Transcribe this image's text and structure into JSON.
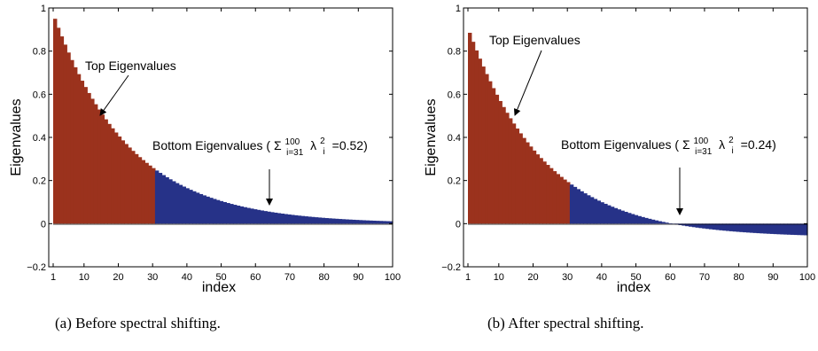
{
  "chart_data": [
    {
      "type": "bar",
      "xlabel": "index",
      "ylabel": "Eigenvalues",
      "xlim": [
        1,
        100
      ],
      "ylim": [
        -0.2,
        1
      ],
      "x_ticks": [
        "1",
        "10",
        "20",
        "30",
        "40",
        "50",
        "60",
        "70",
        "80",
        "90",
        "100"
      ],
      "y_ticks": [
        "−0.2",
        "0",
        "0.2",
        "0.4",
        "0.6",
        "0.8",
        "1"
      ],
      "grid": false,
      "series": [
        {
          "color": "#9b321d",
          "x_range": [
            1,
            30
          ]
        },
        {
          "color": "#263288",
          "x_range": [
            31,
            100
          ]
        }
      ],
      "decay": {
        "first_value": 0.95,
        "rate": 0.045,
        "offset": 0.0
      },
      "annotations": {
        "top": "Top Eigenvalues",
        "bottom_prefix": "Bottom Eigenvalues (",
        "sigma": "Σ",
        "sum_upper": "100",
        "sum_lower": "i=31",
        "lambda": "λ",
        "lambda_sup": "2",
        "lambda_sub": "i",
        "bottom_suffix": "=0.52)"
      },
      "caption": "(a)  Before spectral shifting."
    },
    {
      "type": "bar",
      "xlabel": "index",
      "ylabel": "Eigenvalues",
      "xlim": [
        1,
        100
      ],
      "ylim": [
        -0.2,
        1
      ],
      "x_ticks": [
        "1",
        "10",
        "20",
        "30",
        "40",
        "50",
        "60",
        "70",
        "80",
        "90",
        "100"
      ],
      "y_ticks": [
        "−0.2",
        "0",
        "0.2",
        "0.4",
        "0.6",
        "0.8",
        "1"
      ],
      "grid": false,
      "series": [
        {
          "color": "#9b321d",
          "x_range": [
            1,
            30
          ]
        },
        {
          "color": "#263288",
          "x_range": [
            31,
            100
          ]
        }
      ],
      "decay": {
        "first_value": 0.95,
        "rate": 0.045,
        "offset": 0.065
      },
      "annotations": {
        "top": "Top Eigenvalues",
        "bottom_prefix": "Bottom Eigenvalues (",
        "sigma": "Σ",
        "sum_upper": "100",
        "sum_lower": "i=31",
        "lambda": "λ",
        "lambda_sup": "2",
        "lambda_sub": "i",
        "bottom_suffix": "=0.24)"
      },
      "caption": "(b)  After spectral shifting."
    }
  ]
}
